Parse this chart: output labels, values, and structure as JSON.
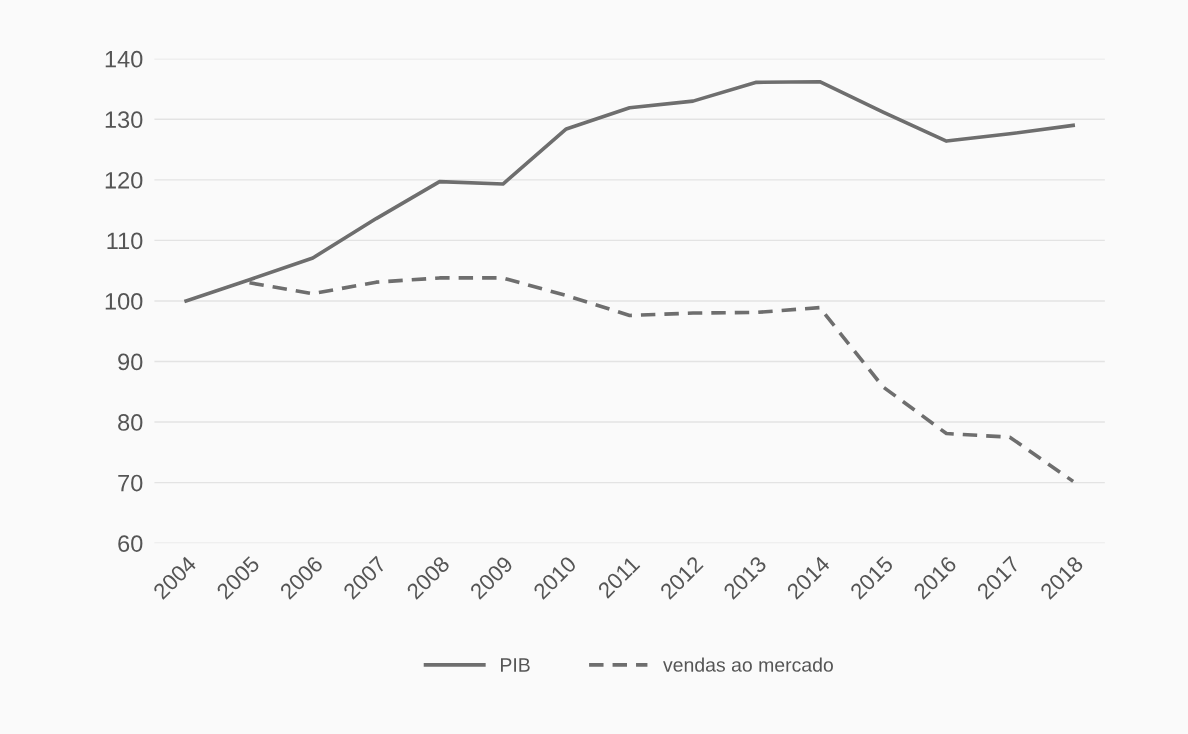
{
  "chart_data": {
    "type": "line",
    "categories": [
      "2004",
      "2005",
      "2006",
      "2007",
      "2008",
      "2009",
      "2010",
      "2011",
      "2012",
      "2013",
      "2014",
      "2015",
      "2016",
      "2017",
      "2018"
    ],
    "series": [
      {
        "name": "PIB",
        "color": "#6e6e6e",
        "line_style": "solid",
        "values": [
          100,
          103.5,
          107.1,
          113.6,
          119.7,
          119.3,
          128.4,
          131.9,
          133.0,
          136.1,
          136.2,
          131.2,
          126.4,
          127.6,
          129.0
        ]
      },
      {
        "name": "vendas ao mercado",
        "color": "#6e6e6e",
        "line_style": "dashed",
        "values": [
          null,
          103.0,
          101.2,
          103.1,
          103.8,
          103.8,
          100.9,
          97.6,
          98.0,
          98.1,
          98.9,
          85.8,
          78.1,
          77.5,
          70.2
        ]
      }
    ],
    "ylim": [
      60,
      140
    ],
    "yticks": [
      60,
      70,
      80,
      90,
      100,
      110,
      120,
      130,
      140
    ],
    "grid": "y",
    "legend": "bottom",
    "marker": "none"
  }
}
